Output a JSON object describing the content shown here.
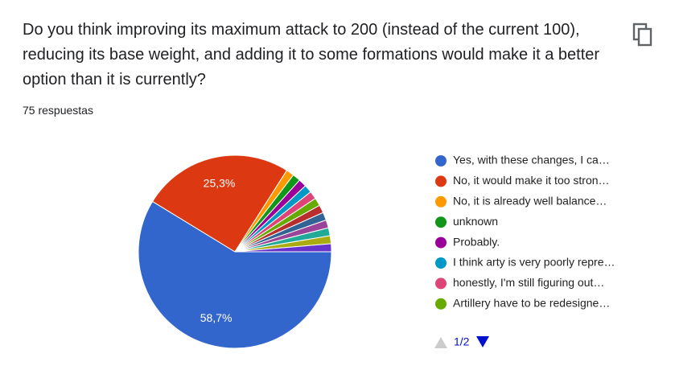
{
  "chart_data": {
    "type": "pie",
    "title": "Do you think improving its maximum attack to 200 (instead of the current 100), reducing its base weight, and adding it to some formations would make it a better option than it is currently?",
    "subtitle": "75 respuestas",
    "categories": [
      "Yes, with these changes, I ca…",
      "No, it would make it too stron…",
      "No, it is already well balance…",
      "unknown",
      "Probably.",
      "I think arty is very poorly repre…",
      "honestly, I'm still figuring out…",
      "Artillery have to be redesigne…",
      null,
      null,
      null,
      null,
      null,
      null
    ],
    "values": [
      58.7,
      25.3,
      1.33,
      1.33,
      1.33,
      1.33,
      1.33,
      1.33,
      1.33,
      1.33,
      1.33,
      1.33,
      1.33,
      1.33
    ],
    "value_labels": [
      "58,7%",
      "25,3%",
      null,
      null,
      null,
      null,
      null,
      null,
      null,
      null,
      null,
      null,
      null,
      null
    ],
    "colors": [
      "#3366cc",
      "#dc3912",
      "#ff9900",
      "#109618",
      "#990099",
      "#0099c6",
      "#dd4477",
      "#66aa00",
      "#b82e2e",
      "#316395",
      "#994499",
      "#22aa99",
      "#aaaa11",
      "#6633cc"
    ],
    "legend_page": "1/2"
  }
}
